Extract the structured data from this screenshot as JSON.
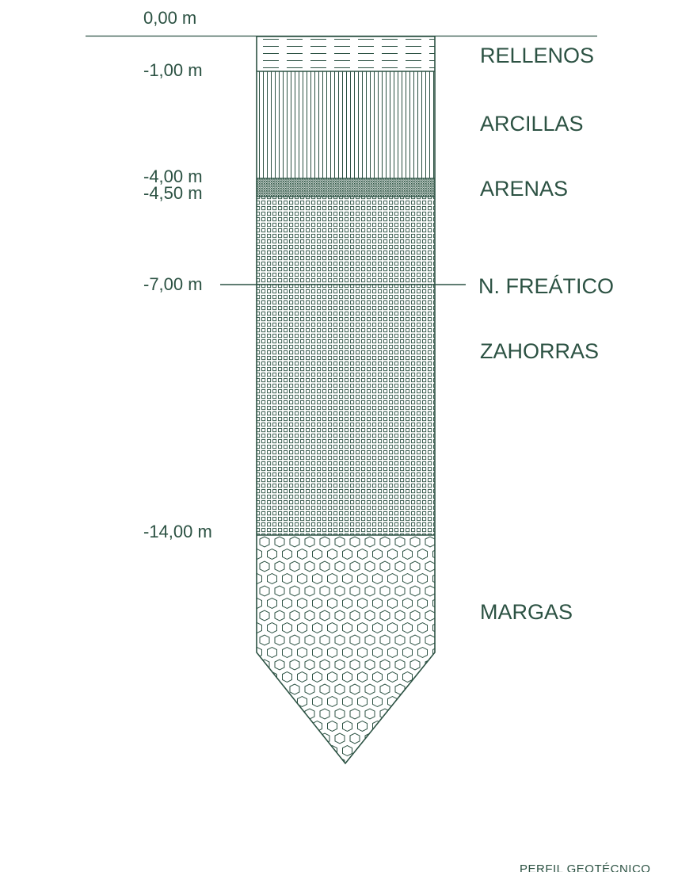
{
  "ground_level_label": "0,00 m",
  "depth_labels": [
    "-1,00 m",
    "-4,00 m",
    "-4,50 m",
    "-7,00 m",
    "-14,00 m"
  ],
  "layers": [
    {
      "name": "RELLENOS",
      "top_m": 0.0,
      "bottom_m": 1.0,
      "pattern": "dashed-lines"
    },
    {
      "name": "ARCILLAS",
      "top_m": 1.0,
      "bottom_m": 4.0,
      "pattern": "vertical-lines"
    },
    {
      "name": "ARENAS",
      "top_m": 4.0,
      "bottom_m": 4.5,
      "pattern": "dense-dots"
    },
    {
      "name": "ZAHORRAS",
      "top_m": 4.5,
      "bottom_m": 14.0,
      "pattern": "small-squares"
    },
    {
      "name": "MARGAS",
      "top_m": 14.0,
      "bottom_m": null,
      "pattern": "hexagons"
    }
  ],
  "water_table": {
    "label": "N. FREÁTICO",
    "depth_m": -7.0
  },
  "caption": "PERFIL GEOTÉCNICO",
  "colors": {
    "line": "#2c5243",
    "text": "#2c5243",
    "background": "#ffffff"
  }
}
